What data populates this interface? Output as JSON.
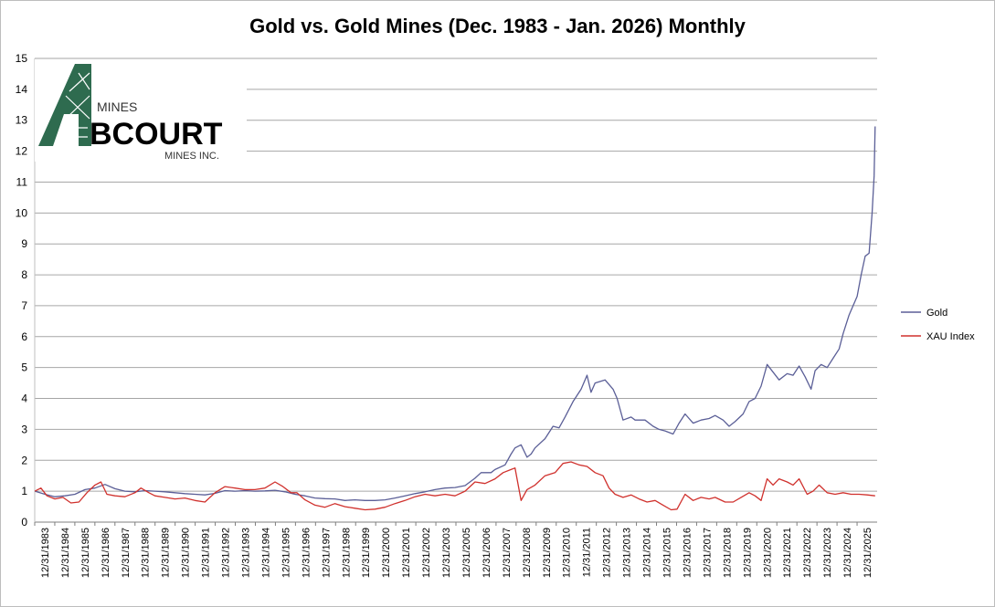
{
  "chart_data": {
    "type": "line",
    "title": "Gold vs. Gold Mines (Dec. 1983 - Jan. 2026) Monthly",
    "xlabel": "",
    "ylabel": "",
    "ylim": [
      0,
      15
    ],
    "yticks": [
      "0",
      "1",
      "2",
      "3",
      "4",
      "5",
      "6",
      "7",
      "8",
      "9",
      "10",
      "11",
      "12",
      "13",
      "14",
      "15"
    ],
    "xlim": [
      1983.99,
      2026.1
    ],
    "x_tick_labels": [
      "12/31/1983",
      "12/31/1984",
      "12/31/1985",
      "12/31/1986",
      "12/31/1987",
      "12/31/1988",
      "12/31/1989",
      "12/31/1990",
      "12/31/1991",
      "12/31/1992",
      "12/31/1993",
      "12/31/1994",
      "12/31/1995",
      "12/31/1996",
      "12/31/1997",
      "12/31/1998",
      "12/31/1999",
      "12/31/2000",
      "12/31/2001",
      "12/31/2002",
      "12/31/2003",
      "12/31/2005",
      "12/31/2006",
      "12/31/2007",
      "12/31/2008",
      "12/31/2009",
      "12/31/2010",
      "12/31/2011",
      "12/31/2012",
      "12/31/2013",
      "12/31/2014",
      "12/31/2015",
      "12/31/2016",
      "12/31/2017",
      "12/31/2018",
      "12/31/2019",
      "12/31/2020",
      "12/31/2021",
      "12/31/2022",
      "12/31/2023",
      "12/31/2024",
      "12/31/2025"
    ],
    "grid": true,
    "legend_position": "right",
    "series": [
      {
        "name": "Gold",
        "color": "#5b5f97",
        "points": [
          [
            1984.0,
            1.0
          ],
          [
            1984.5,
            0.9
          ],
          [
            1985.0,
            0.82
          ],
          [
            1985.5,
            0.85
          ],
          [
            1986.0,
            0.9
          ],
          [
            1986.5,
            1.05
          ],
          [
            1987.0,
            1.1
          ],
          [
            1987.5,
            1.22
          ],
          [
            1988.0,
            1.08
          ],
          [
            1988.5,
            1.0
          ],
          [
            1989.0,
            0.98
          ],
          [
            1989.5,
            1.02
          ],
          [
            1990.0,
            1.0
          ],
          [
            1990.5,
            0.98
          ],
          [
            1991.0,
            0.95
          ],
          [
            1991.5,
            0.92
          ],
          [
            1992.0,
            0.9
          ],
          [
            1992.5,
            0.88
          ],
          [
            1993.0,
            0.93
          ],
          [
            1993.5,
            1.02
          ],
          [
            1994.0,
            1.0
          ],
          [
            1994.5,
            1.02
          ],
          [
            1995.0,
            1.0
          ],
          [
            1995.5,
            1.01
          ],
          [
            1996.0,
            1.03
          ],
          [
            1996.5,
            0.98
          ],
          [
            1997.0,
            0.9
          ],
          [
            1997.5,
            0.85
          ],
          [
            1998.0,
            0.78
          ],
          [
            1998.5,
            0.76
          ],
          [
            1999.0,
            0.75
          ],
          [
            1999.5,
            0.7
          ],
          [
            2000.0,
            0.72
          ],
          [
            2000.5,
            0.7
          ],
          [
            2001.0,
            0.7
          ],
          [
            2001.5,
            0.72
          ],
          [
            2002.0,
            0.78
          ],
          [
            2002.5,
            0.85
          ],
          [
            2003.0,
            0.92
          ],
          [
            2003.5,
            0.98
          ],
          [
            2004.0,
            1.05
          ],
          [
            2004.5,
            1.1
          ],
          [
            2005.0,
            1.12
          ],
          [
            2005.5,
            1.18
          ],
          [
            2006.0,
            1.42
          ],
          [
            2006.3,
            1.6
          ],
          [
            2006.8,
            1.6
          ],
          [
            2007.0,
            1.7
          ],
          [
            2007.5,
            1.85
          ],
          [
            2007.8,
            2.2
          ],
          [
            2008.0,
            2.4
          ],
          [
            2008.3,
            2.5
          ],
          [
            2008.6,
            2.1
          ],
          [
            2008.8,
            2.2
          ],
          [
            2009.0,
            2.4
          ],
          [
            2009.5,
            2.7
          ],
          [
            2009.9,
            3.1
          ],
          [
            2010.2,
            3.05
          ],
          [
            2010.5,
            3.4
          ],
          [
            2010.9,
            3.9
          ],
          [
            2011.3,
            4.3
          ],
          [
            2011.6,
            4.75
          ],
          [
            2011.8,
            4.2
          ],
          [
            2012.0,
            4.5
          ],
          [
            2012.5,
            4.6
          ],
          [
            2012.9,
            4.3
          ],
          [
            2013.1,
            4.0
          ],
          [
            2013.4,
            3.3
          ],
          [
            2013.8,
            3.4
          ],
          [
            2014.0,
            3.3
          ],
          [
            2014.5,
            3.3
          ],
          [
            2014.9,
            3.1
          ],
          [
            2015.2,
            3.0
          ],
          [
            2015.5,
            2.95
          ],
          [
            2015.9,
            2.85
          ],
          [
            2016.2,
            3.2
          ],
          [
            2016.5,
            3.5
          ],
          [
            2016.9,
            3.2
          ],
          [
            2017.3,
            3.3
          ],
          [
            2017.7,
            3.35
          ],
          [
            2018.0,
            3.45
          ],
          [
            2018.4,
            3.3
          ],
          [
            2018.7,
            3.1
          ],
          [
            2019.0,
            3.25
          ],
          [
            2019.4,
            3.5
          ],
          [
            2019.7,
            3.9
          ],
          [
            2020.0,
            4.0
          ],
          [
            2020.3,
            4.4
          ],
          [
            2020.6,
            5.1
          ],
          [
            2020.9,
            4.85
          ],
          [
            2021.2,
            4.6
          ],
          [
            2021.6,
            4.8
          ],
          [
            2021.9,
            4.75
          ],
          [
            2022.2,
            5.05
          ],
          [
            2022.5,
            4.7
          ],
          [
            2022.8,
            4.3
          ],
          [
            2023.0,
            4.9
          ],
          [
            2023.3,
            5.1
          ],
          [
            2023.6,
            5.0
          ],
          [
            2023.9,
            5.3
          ],
          [
            2024.2,
            5.6
          ],
          [
            2024.4,
            6.1
          ],
          [
            2024.7,
            6.7
          ],
          [
            2024.9,
            7.0
          ],
          [
            2025.1,
            7.3
          ],
          [
            2025.3,
            8.0
          ],
          [
            2025.5,
            8.6
          ],
          [
            2025.7,
            8.7
          ],
          [
            2025.85,
            10.0
          ],
          [
            2025.95,
            11.2
          ],
          [
            2026.0,
            12.8
          ]
        ]
      },
      {
        "name": "XAU Index",
        "color": "#d0312d",
        "points": [
          [
            1984.0,
            1.0
          ],
          [
            1984.3,
            1.1
          ],
          [
            1984.6,
            0.85
          ],
          [
            1985.0,
            0.75
          ],
          [
            1985.4,
            0.8
          ],
          [
            1985.8,
            0.62
          ],
          [
            1986.2,
            0.65
          ],
          [
            1986.6,
            0.95
          ],
          [
            1987.0,
            1.2
          ],
          [
            1987.3,
            1.3
          ],
          [
            1987.6,
            0.9
          ],
          [
            1988.0,
            0.85
          ],
          [
            1988.5,
            0.82
          ],
          [
            1989.0,
            0.95
          ],
          [
            1989.3,
            1.1
          ],
          [
            1989.7,
            0.95
          ],
          [
            1990.0,
            0.85
          ],
          [
            1990.5,
            0.8
          ],
          [
            1991.0,
            0.75
          ],
          [
            1991.5,
            0.78
          ],
          [
            1992.0,
            0.7
          ],
          [
            1992.5,
            0.65
          ],
          [
            1993.0,
            0.95
          ],
          [
            1993.5,
            1.15
          ],
          [
            1994.0,
            1.1
          ],
          [
            1994.5,
            1.05
          ],
          [
            1995.0,
            1.05
          ],
          [
            1995.5,
            1.1
          ],
          [
            1996.0,
            1.3
          ],
          [
            1996.4,
            1.15
          ],
          [
            1996.8,
            0.95
          ],
          [
            1997.1,
            0.95
          ],
          [
            1997.5,
            0.72
          ],
          [
            1998.0,
            0.55
          ],
          [
            1998.5,
            0.48
          ],
          [
            1999.0,
            0.6
          ],
          [
            1999.5,
            0.5
          ],
          [
            2000.0,
            0.45
          ],
          [
            2000.5,
            0.4
          ],
          [
            2001.0,
            0.42
          ],
          [
            2001.5,
            0.48
          ],
          [
            2002.0,
            0.6
          ],
          [
            2002.5,
            0.7
          ],
          [
            2003.0,
            0.82
          ],
          [
            2003.5,
            0.9
          ],
          [
            2004.0,
            0.85
          ],
          [
            2004.5,
            0.9
          ],
          [
            2005.0,
            0.85
          ],
          [
            2005.5,
            1.0
          ],
          [
            2006.0,
            1.3
          ],
          [
            2006.5,
            1.25
          ],
          [
            2007.0,
            1.4
          ],
          [
            2007.4,
            1.6
          ],
          [
            2007.8,
            1.7
          ],
          [
            2008.0,
            1.75
          ],
          [
            2008.3,
            0.7
          ],
          [
            2008.6,
            1.05
          ],
          [
            2009.0,
            1.2
          ],
          [
            2009.5,
            1.5
          ],
          [
            2010.0,
            1.6
          ],
          [
            2010.4,
            1.9
          ],
          [
            2010.8,
            1.95
          ],
          [
            2011.2,
            1.85
          ],
          [
            2011.6,
            1.8
          ],
          [
            2012.0,
            1.6
          ],
          [
            2012.4,
            1.5
          ],
          [
            2012.7,
            1.1
          ],
          [
            2013.0,
            0.9
          ],
          [
            2013.4,
            0.8
          ],
          [
            2013.8,
            0.88
          ],
          [
            2014.2,
            0.75
          ],
          [
            2014.6,
            0.65
          ],
          [
            2015.0,
            0.7
          ],
          [
            2015.4,
            0.55
          ],
          [
            2015.8,
            0.4
          ],
          [
            2016.1,
            0.42
          ],
          [
            2016.5,
            0.9
          ],
          [
            2016.9,
            0.7
          ],
          [
            2017.3,
            0.8
          ],
          [
            2017.7,
            0.75
          ],
          [
            2018.0,
            0.8
          ],
          [
            2018.5,
            0.65
          ],
          [
            2018.9,
            0.65
          ],
          [
            2019.3,
            0.8
          ],
          [
            2019.7,
            0.95
          ],
          [
            2020.0,
            0.85
          ],
          [
            2020.3,
            0.7
          ],
          [
            2020.6,
            1.4
          ],
          [
            2020.9,
            1.2
          ],
          [
            2021.2,
            1.4
          ],
          [
            2021.6,
            1.3
          ],
          [
            2021.9,
            1.2
          ],
          [
            2022.2,
            1.4
          ],
          [
            2022.6,
            0.9
          ],
          [
            2022.9,
            1.0
          ],
          [
            2023.2,
            1.2
          ],
          [
            2023.6,
            0.95
          ],
          [
            2024.0,
            0.9
          ],
          [
            2024.4,
            0.95
          ],
          [
            2024.8,
            0.9
          ],
          [
            2025.2,
            0.9
          ],
          [
            2025.6,
            0.88
          ],
          [
            2026.0,
            0.85
          ]
        ]
      }
    ]
  },
  "logo": {
    "lines": [
      "MINES",
      "BCOURT",
      "MINES INC."
    ]
  }
}
